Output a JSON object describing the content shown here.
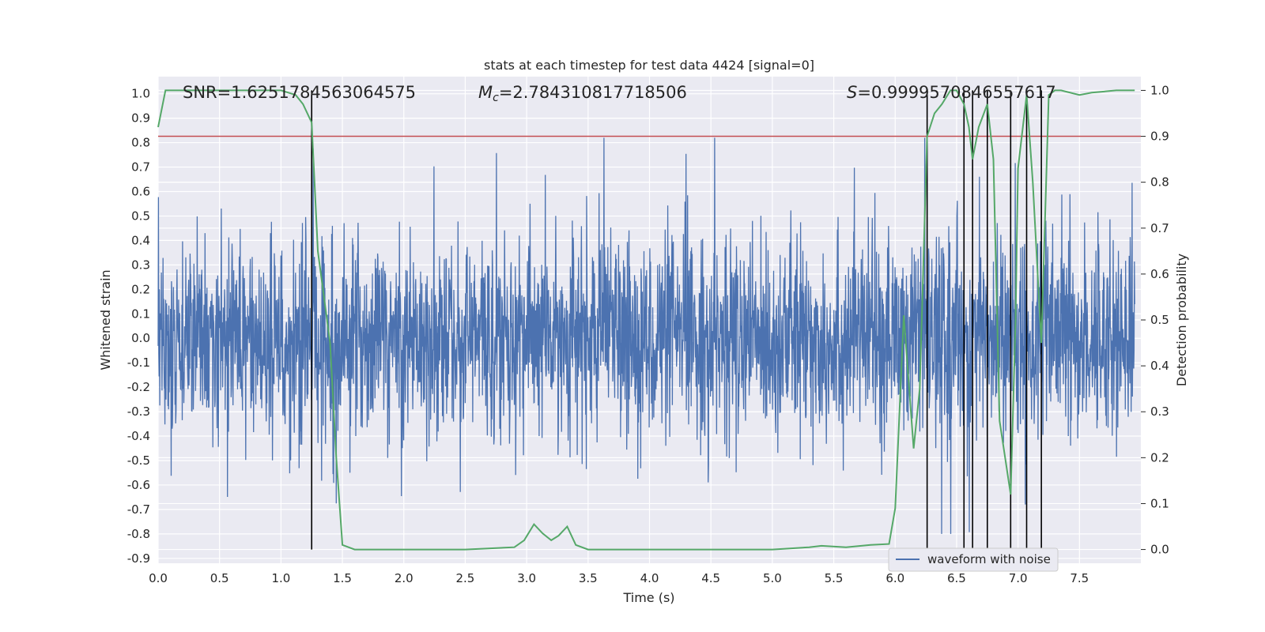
{
  "chart_data": {
    "type": "line",
    "title": "stats at each timestep for test data 4424 [signal=0]",
    "xlabel": "Time (s)",
    "ylabel": "Whitened strain",
    "y2label": "Detection probability",
    "xlim": [
      0.0,
      8.0
    ],
    "ylim": [
      -0.92,
      1.07
    ],
    "y2lim": [
      -0.03,
      1.03
    ],
    "x_ticks": [
      "0.0",
      "0.5",
      "1.0",
      "1.5",
      "2.0",
      "2.5",
      "3.0",
      "3.5",
      "4.0",
      "4.5",
      "5.0",
      "5.5",
      "6.0",
      "6.5",
      "7.0",
      "7.5"
    ],
    "y_ticks": [
      "1.0",
      "0.9",
      "0.8",
      "0.7",
      "0.6",
      "0.5",
      "0.4",
      "0.3",
      "0.2",
      "0.1",
      "0.0",
      "-0.1",
      "-0.2",
      "-0.3",
      "-0.4",
      "-0.5",
      "-0.6",
      "-0.7",
      "-0.8",
      "-0.9"
    ],
    "y2_ticks": [
      "1.0",
      "0.9",
      "0.8",
      "0.7",
      "0.6",
      "0.5",
      "0.4",
      "0.3",
      "0.2",
      "0.1",
      "0.0"
    ],
    "grid": true,
    "legend_position": "bottom-right",
    "annotations": {
      "snr": "SNR=1.6251784563064575",
      "mc_symbol": "M",
      "mc_sub": "c",
      "mc_value": "=2.784310817718506",
      "s_symbol": "S",
      "s_value": "=0.9999570846557617"
    },
    "threshold": {
      "y2": 0.9,
      "color": "#c44e52"
    },
    "vertical_markers_x": [
      1.25,
      6.26,
      6.56,
      6.63,
      6.75,
      6.94,
      7.07,
      7.19
    ],
    "series": [
      {
        "name": "waveform with noise",
        "color": "#4c72b0",
        "description_envelope": {
          "typical_range": [
            -0.45,
            0.45
          ],
          "extreme_range": [
            -0.8,
            0.82
          ]
        }
      },
      {
        "color": "#55a868",
        "axis": "right",
        "x": [
          0.0,
          0.06,
          0.12,
          0.5,
          1.0,
          1.12,
          1.18,
          1.25,
          1.3,
          1.4,
          1.45,
          1.5,
          1.6,
          2.0,
          2.5,
          2.9,
          2.98,
          3.06,
          3.13,
          3.2,
          3.26,
          3.33,
          3.4,
          3.5,
          4.0,
          4.5,
          5.0,
          5.3,
          5.4,
          5.6,
          5.8,
          5.95,
          6.0,
          6.07,
          6.15,
          6.2,
          6.26,
          6.32,
          6.38,
          6.45,
          6.5,
          6.56,
          6.6,
          6.63,
          6.68,
          6.75,
          6.8,
          6.85,
          6.94,
          6.98,
          7.0,
          7.07,
          7.12,
          7.19,
          7.25,
          7.3,
          7.35,
          7.5,
          7.6,
          7.8,
          7.95
        ],
        "values": [
          0.92,
          1.0,
          1.0,
          1.0,
          1.0,
          0.99,
          0.97,
          0.93,
          0.65,
          0.45,
          0.2,
          0.01,
          0.0,
          0.0,
          0.0,
          0.005,
          0.02,
          0.055,
          0.035,
          0.02,
          0.03,
          0.05,
          0.01,
          0.0,
          0.0,
          0.0,
          0.0,
          0.005,
          0.008,
          0.005,
          0.01,
          0.012,
          0.09,
          0.51,
          0.22,
          0.35,
          0.9,
          0.95,
          0.97,
          1.0,
          1.0,
          0.97,
          0.92,
          0.85,
          0.92,
          0.97,
          0.85,
          0.28,
          0.12,
          0.5,
          0.83,
          0.99,
          0.8,
          0.45,
          0.99,
          1.0,
          1.0,
          0.99,
          0.995,
          1.0,
          1.0
        ]
      }
    ]
  }
}
